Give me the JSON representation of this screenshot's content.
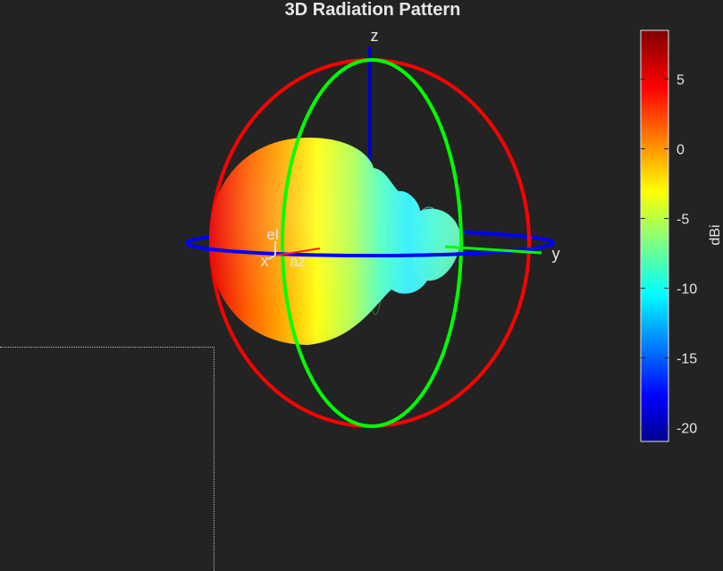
{
  "figure": {
    "title": "3D Radiation Pattern",
    "background": "#232323"
  },
  "chart_data": {
    "type": "3d-surface",
    "title": "3D Radiation Pattern",
    "axes": {
      "x_label": "x",
      "y_label": "y",
      "z_label": "z",
      "az_label": "az",
      "el_label": "el"
    },
    "circles": [
      {
        "name": "azimuth",
        "color": "#0000ff"
      },
      {
        "name": "elevation-xz",
        "color": "#ff0000"
      },
      {
        "name": "elevation-yz",
        "color": "#00ff00"
      }
    ],
    "colorbar": {
      "label": "dBi",
      "colormap": "jet",
      "clim": [
        -21,
        8.5
      ],
      "ticks": [
        5,
        0,
        -5,
        -10,
        -15,
        -20
      ],
      "tick_labels": [
        "5",
        "0",
        "-5",
        "-10",
        "-15",
        "-20"
      ]
    },
    "lobes": [
      {
        "name": "main",
        "gain_dbi": 8.5
      },
      {
        "name": "neck",
        "gain_dbi": -11
      },
      {
        "name": "side1",
        "gain_dbi": -9
      },
      {
        "name": "side2",
        "gain_dbi": -8
      }
    ]
  }
}
